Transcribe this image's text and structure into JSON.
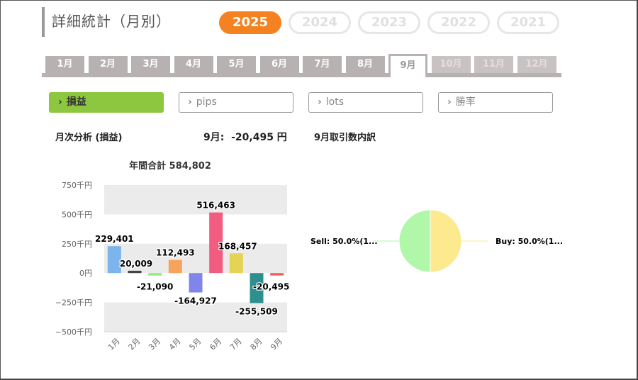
{
  "page": {
    "title": "詳細統計（月別）"
  },
  "years": [
    "2025",
    "2024",
    "2023",
    "2022",
    "2021"
  ],
  "selected_year": "2025",
  "months": [
    "1月",
    "2月",
    "3月",
    "4月",
    "5月",
    "6月",
    "7月",
    "8月",
    "9月",
    "10月",
    "11月",
    "12月"
  ],
  "selected_month_index": 8,
  "metrics": [
    {
      "label": "損益",
      "active": true
    },
    {
      "label": "pips",
      "active": false
    },
    {
      "label": "lots",
      "active": false
    },
    {
      "label": "勝率",
      "active": false
    }
  ],
  "summary": {
    "monthly_analysis_label": "月次分析 (損益)",
    "month_label": "9月:",
    "month_value": "-20,495 円",
    "trade_breakdown_label": "9月取引数内訳"
  },
  "chart_data": [
    {
      "type": "bar",
      "title": "年間合計 584,802",
      "categories": [
        "1月",
        "2月",
        "3月",
        "4月",
        "5月",
        "6月",
        "7月",
        "8月",
        "9月"
      ],
      "values": [
        229401,
        20009,
        -21090,
        112493,
        -164927,
        516463,
        168457,
        -255509,
        -20495
      ],
      "data_labels": [
        "229,401",
        "20,009",
        "-21,090",
        "112,493",
        "-164,927",
        "516,463",
        "168,457",
        "-255,509",
        "-20,495"
      ],
      "colors": [
        "#7cb5ec",
        "#434348",
        "#90ed7d",
        "#f7a35c",
        "#8085e9",
        "#f15c80",
        "#e4d354",
        "#2b908f",
        "#f45b5b"
      ],
      "yticks": [
        750000,
        500000,
        250000,
        0,
        -250000,
        -500000
      ],
      "ytick_labels": [
        "750千円",
        "500千円",
        "250千円",
        "0円",
        "−250千円",
        "−500千円"
      ],
      "ylim": [
        -500000,
        750000
      ]
    },
    {
      "type": "pie",
      "slices": [
        {
          "label": "Sell: 50.0%(1...",
          "value": 50.0,
          "color": "#b1f7a9"
        },
        {
          "label": "Buy: 50.0%(1...",
          "value": 50.0,
          "color": "#fde98e"
        }
      ]
    }
  ]
}
